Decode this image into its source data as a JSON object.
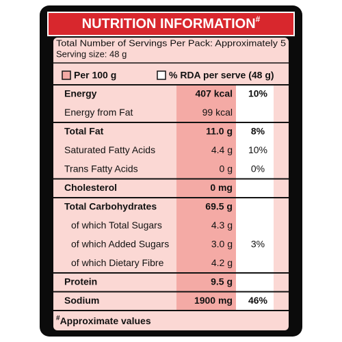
{
  "header": {
    "title": "NUTRITION INFORMATION",
    "title_mark": "#"
  },
  "servings": [
    "Total Number of Servings Per Pack: Approximately 5",
    "Serving size: 48 g"
  ],
  "legend": [
    "Per 100 g",
    "% RDA per serve (48 g)"
  ],
  "table": {
    "groups": [
      {
        "rows": [
          {
            "name": "Energy",
            "value": "407 kcal",
            "rda": "10%",
            "bold": true
          },
          {
            "name": "Energy from Fat",
            "value": "99 kcal",
            "rda": null,
            "bold": false
          }
        ]
      },
      {
        "rows": [
          {
            "name": "Total Fat",
            "value": "11.0 g",
            "rda": "8%",
            "bold": true
          },
          {
            "name": "Saturated Fatty Acids",
            "value": "4.4 g",
            "rda": "10%",
            "bold": false
          },
          {
            "name": "Trans Fatty Acids",
            "value": "0 g",
            "rda": "0%",
            "bold": false
          }
        ]
      },
      {
        "rows": [
          {
            "name": "Cholesterol",
            "value": "0 mg",
            "rda": null,
            "bold": true
          }
        ]
      },
      {
        "rows": [
          {
            "name": "Total Carbohydrates",
            "value": "69.5 g",
            "rda": null,
            "bold": true
          },
          {
            "name": "of which Total Sugars",
            "value": "4.3 g",
            "rda": null,
            "bold": false
          },
          {
            "name": "of which Added Sugars",
            "value": "3.0 g",
            "rda": "3%",
            "bold": false
          },
          {
            "name": "of which Dietary Fibre",
            "value": "4.2 g",
            "rda": null,
            "bold": false
          }
        ]
      },
      {
        "rows": [
          {
            "name": "Protein",
            "value": "9.5 g",
            "rda": null,
            "bold": true
          }
        ]
      },
      {
        "rows": [
          {
            "name": "Sodium",
            "value": "1900 mg",
            "rda": "46%",
            "bold": true
          }
        ]
      }
    ]
  },
  "footnote": {
    "mark": "#",
    "text": "Approximate values"
  }
}
